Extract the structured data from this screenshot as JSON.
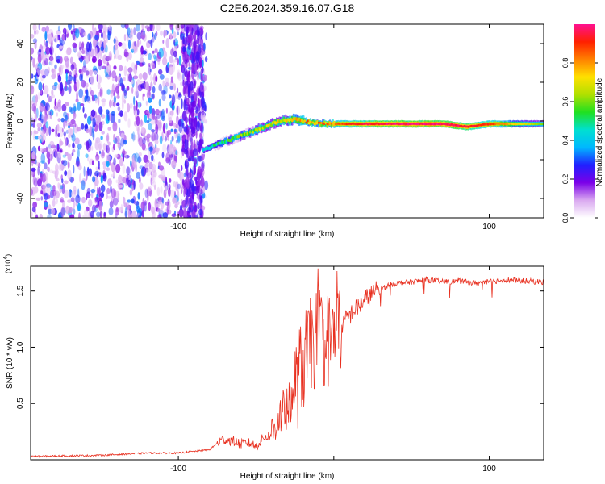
{
  "title": "C2E6.2024.359.16.07.G18",
  "chart_data": [
    {
      "type": "heatmap",
      "title": "C2E6.2024.359.16.07.G18",
      "xlabel": "Height of straight line (km)",
      "ylabel": "Frequency (Hz)",
      "xlim": [
        -195,
        135
      ],
      "ylim": [
        -50,
        50
      ],
      "xticks": [
        -100,
        0,
        100
      ],
      "xtick_labels": [
        "-100",
        "",
        "100"
      ],
      "yticks": [
        -40,
        -20,
        0,
        20,
        40
      ],
      "ytick_labels": [
        "-40",
        "-20",
        "0",
        "20",
        "40"
      ],
      "grid": false,
      "noise_region": {
        "x_range": [
          -195,
          -82
        ],
        "freq_range": [
          -50,
          50
        ],
        "amplitude_range": [
          0.0,
          0.3
        ]
      },
      "signal_track": [
        {
          "x": -85,
          "freq": -15,
          "amplitude": 0.4
        },
        {
          "x": -75,
          "freq": -12,
          "amplitude": 0.5
        },
        {
          "x": -65,
          "freq": -9,
          "amplitude": 0.55
        },
        {
          "x": -55,
          "freq": -6,
          "amplitude": 0.6
        },
        {
          "x": -45,
          "freq": -3,
          "amplitude": 0.65
        },
        {
          "x": -35,
          "freq": 0,
          "amplitude": 0.7
        },
        {
          "x": -25,
          "freq": 1,
          "amplitude": 0.75
        },
        {
          "x": -15,
          "freq": -1,
          "amplitude": 0.8
        },
        {
          "x": 0,
          "freq": -1.5,
          "amplitude": 0.85
        },
        {
          "x": 20,
          "freq": -1.5,
          "amplitude": 0.95
        },
        {
          "x": 50,
          "freq": -1.5,
          "amplitude": 1.0
        },
        {
          "x": 70,
          "freq": -1.5,
          "amplitude": 1.0
        },
        {
          "x": 85,
          "freq": -3,
          "amplitude": 0.95
        },
        {
          "x": 100,
          "freq": -1.5,
          "amplitude": 0.9
        },
        {
          "x": 120,
          "freq": -1.5,
          "amplitude": 0.7
        },
        {
          "x": 135,
          "freq": -1.5,
          "amplitude": 0.6
        }
      ],
      "colorbar": {
        "label": "Normalized spectral amplitude",
        "range": [
          0.0,
          1.0
        ],
        "ticks": [
          0.0,
          0.2,
          0.4,
          0.6,
          0.8
        ],
        "tick_labels": [
          "0.0",
          "0.2",
          "0.4",
          "0.6",
          "0.8"
        ],
        "colors": [
          "#ffffff",
          "#d9a8f0",
          "#7a00e8",
          "#2020ff",
          "#00b8ff",
          "#00e0d0",
          "#20e020",
          "#b0e000",
          "#ffe000",
          "#ff8000",
          "#ff2000",
          "#ff1090"
        ]
      }
    },
    {
      "type": "line",
      "xlabel": "Height of straight line (km)",
      "ylabel": "SNR (10 * v/v)",
      "y_multiplier_label": "(x10",
      "y_multiplier_exp": "4",
      "y_multiplier_close": ")",
      "xlim": [
        -195,
        135
      ],
      "ylim": [
        0,
        1.72
      ],
      "xticks": [
        -100,
        0,
        100
      ],
      "xtick_labels": [
        "-100",
        "",
        "100"
      ],
      "yticks": [
        0.5,
        1.0,
        1.5
      ],
      "ytick_labels": [
        "0.5",
        "1.0",
        "1.5"
      ],
      "grid": false,
      "line_color": "#e83020",
      "series": [
        {
          "x": [
            -195,
            -150,
            -120,
            -100,
            -80,
            -72,
            -65,
            -60,
            -55,
            -50,
            -45,
            -40,
            -35,
            -30,
            -25,
            -20,
            -15,
            -10,
            -5,
            0,
            5,
            10,
            15,
            20,
            25,
            30,
            35,
            40,
            50,
            60,
            70,
            80,
            90,
            100,
            110,
            120,
            135
          ],
          "y": [
            0.03,
            0.04,
            0.06,
            0.06,
            0.09,
            0.18,
            0.17,
            0.14,
            0.15,
            0.12,
            0.2,
            0.22,
            0.4,
            0.45,
            0.62,
            0.85,
            1.0,
            1.1,
            1.05,
            1.1,
            1.2,
            1.28,
            1.35,
            1.42,
            1.48,
            1.52,
            1.55,
            1.57,
            1.58,
            1.6,
            1.58,
            1.59,
            1.57,
            1.58,
            1.6,
            1.59,
            1.58
          ]
        }
      ]
    }
  ]
}
